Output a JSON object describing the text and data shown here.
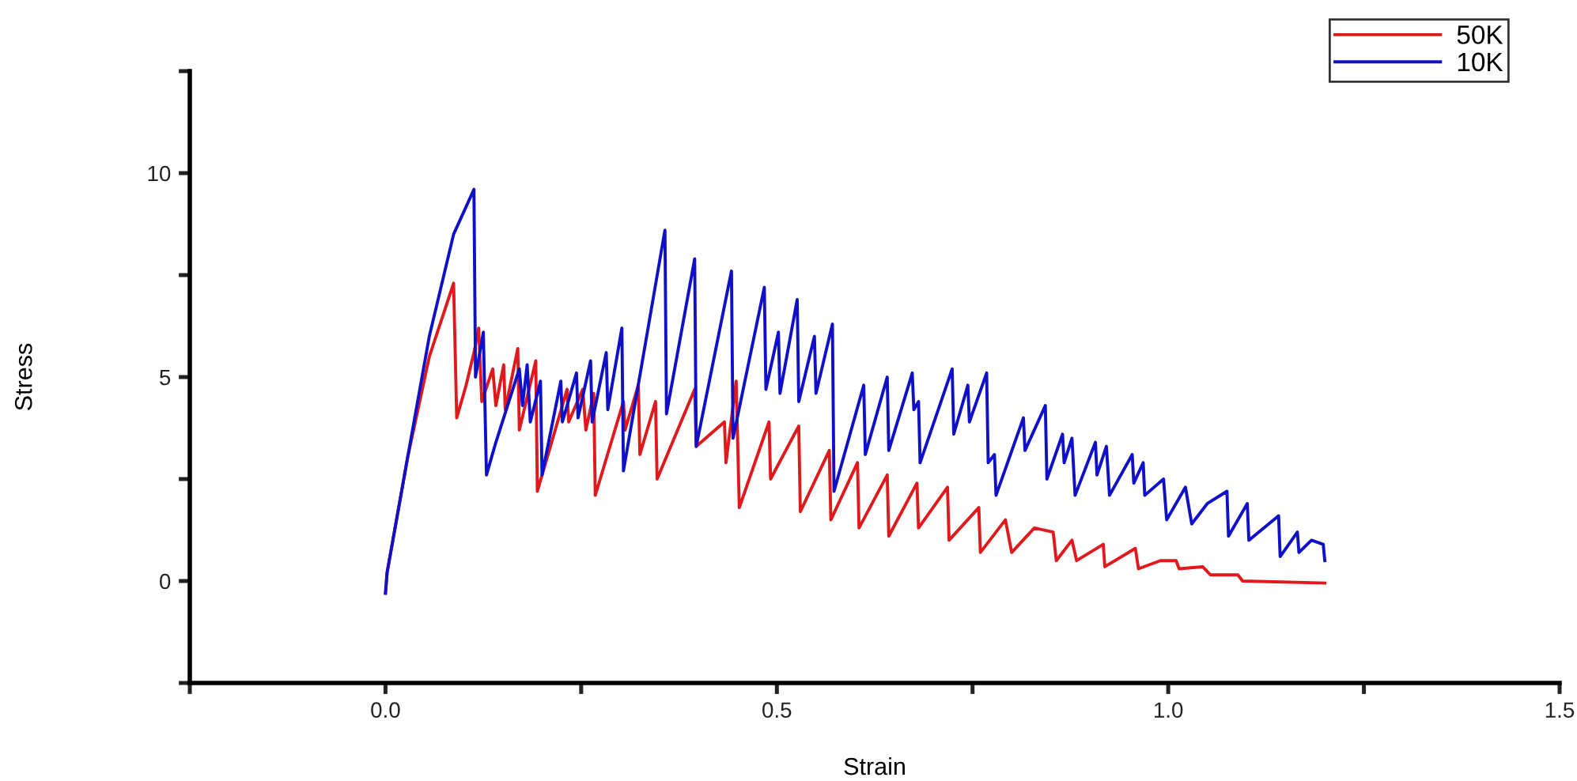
{
  "chart_data": {
    "type": "line",
    "xlabel": "Strain",
    "ylabel": "Stress",
    "xlim": [
      -0.25,
      1.5
    ],
    "xticks": [
      {
        "value": -0.25,
        "label": null
      },
      {
        "value": 0,
        "label": "0.0"
      },
      {
        "value": 0.25,
        "label": null
      },
      {
        "value": 0.5,
        "label": "0.5"
      },
      {
        "value": 0.75,
        "label": null
      },
      {
        "value": 1,
        "label": "1.0"
      },
      {
        "value": 1.25,
        "label": null
      },
      {
        "value": 1.5,
        "label": "1.5"
      }
    ],
    "ylim": [
      -2.5,
      12.5
    ],
    "yticks": [
      {
        "value": -2.5,
        "label": null
      },
      0,
      {
        "value": 2.5,
        "label": null
      },
      5,
      {
        "value": 7.5,
        "label": null
      },
      10,
      {
        "value": 12.5,
        "label": null
      }
    ],
    "grid": false,
    "legend": "top right",
    "marker": "none",
    "line_style": "solid",
    "series": [
      {
        "name": "50K",
        "color": "#e0191c",
        "x": [
          0.0,
          0.002,
          0.028,
          0.056,
          0.087,
          0.091,
          0.103,
          0.113,
          0.119,
          0.123,
          0.137,
          0.141,
          0.151,
          0.153,
          0.169,
          0.171,
          0.192,
          0.194,
          0.232,
          0.234,
          0.252,
          0.256,
          0.266,
          0.268,
          0.304,
          0.306,
          0.323,
          0.325,
          0.345,
          0.347,
          0.395,
          0.397,
          0.433,
          0.435,
          0.448,
          0.452,
          0.49,
          0.492,
          0.528,
          0.53,
          0.567,
          0.569,
          0.603,
          0.605,
          0.641,
          0.643,
          0.679,
          0.681,
          0.718,
          0.72,
          0.758,
          0.76,
          0.792,
          0.8,
          0.829,
          0.853,
          0.857,
          0.877,
          0.883,
          0.917,
          0.919,
          0.958,
          0.962,
          0.99,
          1.01,
          1.014,
          1.044,
          1.054,
          1.089,
          1.095,
          1.2
        ],
        "values": [
          -0.3,
          0.2,
          3.0,
          5.5,
          7.3,
          4.0,
          4.8,
          5.6,
          6.2,
          4.4,
          5.2,
          4.3,
          5.3,
          4.2,
          5.7,
          3.7,
          5.4,
          2.2,
          4.7,
          3.9,
          4.7,
          3.7,
          4.6,
          2.1,
          4.4,
          3.7,
          4.8,
          3.1,
          4.4,
          2.5,
          4.7,
          3.3,
          3.9,
          2.9,
          4.9,
          1.8,
          3.9,
          2.5,
          3.8,
          1.7,
          3.2,
          1.5,
          2.9,
          1.3,
          2.6,
          1.1,
          2.4,
          1.3,
          2.3,
          1.0,
          1.8,
          0.7,
          1.5,
          0.7,
          1.3,
          1.2,
          0.5,
          1.0,
          0.5,
          0.9,
          0.35,
          0.8,
          0.3,
          0.5,
          0.5,
          0.3,
          0.35,
          0.15,
          0.15,
          0.0,
          -0.05
        ]
      },
      {
        "name": "10K",
        "color": "#1010c8",
        "x": [
          0.0,
          0.002,
          0.028,
          0.056,
          0.087,
          0.113,
          0.115,
          0.125,
          0.129,
          0.141,
          0.171,
          0.175,
          0.181,
          0.185,
          0.198,
          0.2,
          0.224,
          0.226,
          0.244,
          0.246,
          0.262,
          0.264,
          0.282,
          0.284,
          0.302,
          0.304,
          0.357,
          0.359,
          0.395,
          0.397,
          0.442,
          0.444,
          0.484,
          0.486,
          0.502,
          0.504,
          0.526,
          0.528,
          0.548,
          0.55,
          0.571,
          0.573,
          0.611,
          0.613,
          0.641,
          0.643,
          0.673,
          0.675,
          0.681,
          0.683,
          0.724,
          0.726,
          0.744,
          0.746,
          0.768,
          0.77,
          0.778,
          0.78,
          0.815,
          0.817,
          0.843,
          0.845,
          0.865,
          0.867,
          0.877,
          0.881,
          0.907,
          0.909,
          0.921,
          0.925,
          0.954,
          0.956,
          0.968,
          0.97,
          0.994,
          0.998,
          1.022,
          1.03,
          1.05,
          1.075,
          1.077,
          1.101,
          1.103,
          1.141,
          1.143,
          1.165,
          1.167,
          1.183,
          1.198,
          1.2
        ],
        "values": [
          -0.3,
          0.2,
          3.0,
          6.0,
          8.5,
          9.6,
          5.0,
          6.1,
          2.6,
          3.4,
          5.2,
          4.3,
          5.3,
          3.9,
          4.9,
          2.6,
          4.9,
          3.9,
          5.1,
          4.0,
          5.4,
          3.9,
          5.6,
          4.2,
          6.2,
          2.7,
          8.6,
          4.1,
          7.9,
          3.3,
          7.6,
          3.5,
          7.2,
          4.7,
          6.1,
          4.6,
          6.9,
          4.4,
          6.0,
          4.6,
          6.3,
          2.2,
          4.8,
          3.1,
          5.0,
          3.2,
          5.1,
          4.2,
          4.4,
          2.9,
          5.2,
          3.6,
          4.8,
          3.9,
          5.1,
          2.9,
          3.1,
          2.1,
          4.0,
          3.2,
          4.3,
          2.5,
          3.6,
          2.9,
          3.5,
          2.1,
          3.4,
          2.6,
          3.3,
          2.1,
          3.1,
          2.4,
          2.9,
          2.1,
          2.5,
          1.5,
          2.3,
          1.4,
          1.9,
          2.2,
          1.1,
          1.9,
          1.0,
          1.6,
          0.6,
          1.2,
          0.7,
          1.0,
          0.9,
          0.5
        ]
      }
    ]
  }
}
